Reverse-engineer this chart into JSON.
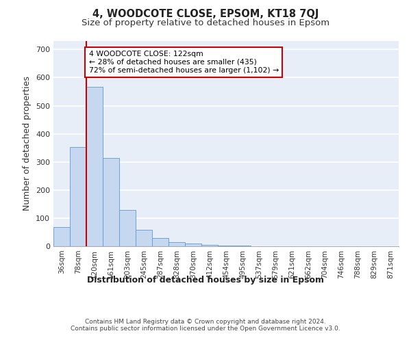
{
  "title": "4, WOODCOTE CLOSE, EPSOM, KT18 7QJ",
  "subtitle": "Size of property relative to detached houses in Epsom",
  "xlabel": "Distribution of detached houses by size in Epsom",
  "ylabel": "Number of detached properties",
  "bar_labels": [
    "36sqm",
    "78sqm",
    "120sqm",
    "161sqm",
    "203sqm",
    "245sqm",
    "287sqm",
    "328sqm",
    "370sqm",
    "412sqm",
    "454sqm",
    "495sqm",
    "537sqm",
    "579sqm",
    "621sqm",
    "662sqm",
    "704sqm",
    "746sqm",
    "788sqm",
    "829sqm",
    "871sqm"
  ],
  "bar_heights": [
    68,
    354,
    568,
    313,
    130,
    58,
    28,
    14,
    10,
    5,
    3,
    2,
    1,
    0,
    0,
    0,
    0,
    0,
    0,
    0,
    0
  ],
  "bar_color": "#c5d8f0",
  "bar_edge_color": "#5b9bd5",
  "vline_x_idx": 2,
  "vline_color": "#cc0000",
  "annotation_text": "4 WOODCOTE CLOSE: 122sqm\n← 28% of detached houses are smaller (435)\n72% of semi-detached houses are larger (1,102) →",
  "annotation_box_color": "#ffffff",
  "annotation_box_edge": "#cc0000",
  "ylim": [
    0,
    730
  ],
  "yticks": [
    0,
    100,
    200,
    300,
    400,
    500,
    600,
    700
  ],
  "footer_text": "Contains HM Land Registry data © Crown copyright and database right 2024.\nContains public sector information licensed under the Open Government Licence v3.0.",
  "plot_bg_color": "#e8eef8",
  "grid_color": "#ffffff",
  "title_fontsize": 10.5,
  "subtitle_fontsize": 9.5,
  "axis_label_fontsize": 9,
  "tick_fontsize": 7.5,
  "footer_fontsize": 6.5
}
